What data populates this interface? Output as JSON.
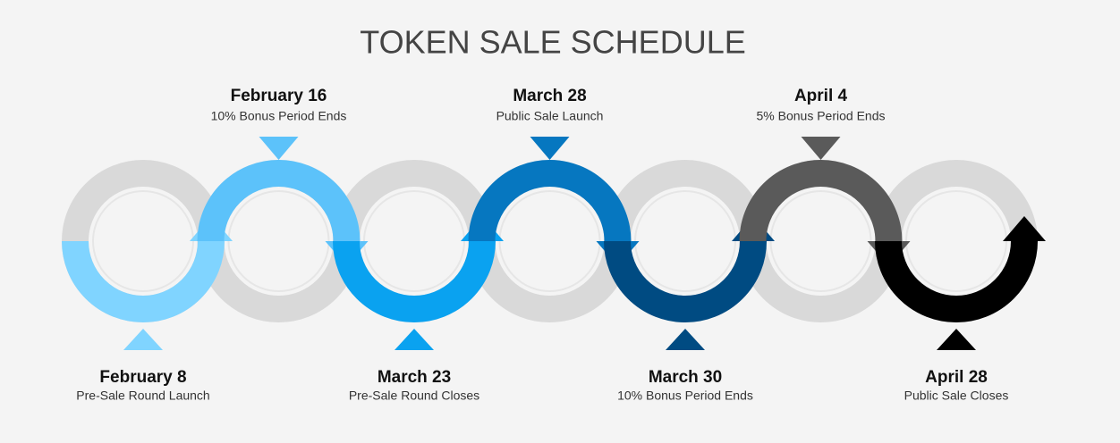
{
  "title": "TOKEN SALE SCHEDULE",
  "milestones": [
    {
      "date": "February 8",
      "description": "Pre-Sale Round Launch"
    },
    {
      "date": "February 16",
      "description": "10% Bonus Period Ends"
    },
    {
      "date": "March 23",
      "description": "Pre-Sale Round Closes"
    },
    {
      "date": "March 28",
      "description": "Public Sale Launch"
    },
    {
      "date": "March 30",
      "description": "10% Bonus Period Ends"
    },
    {
      "date": "April 4",
      "description": "5% Bonus Period Ends"
    },
    {
      "date": "April 28",
      "description": "Public Sale Closes"
    }
  ]
}
